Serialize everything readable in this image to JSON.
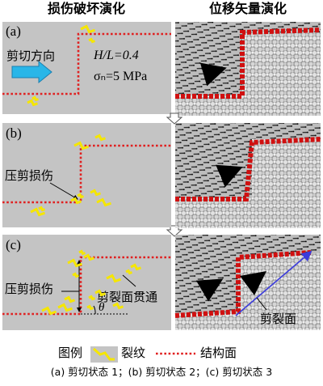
{
  "headers": {
    "left": "损伤破坏演化",
    "right": "位移矢量演化"
  },
  "panels": [
    {
      "label": "(a)",
      "direction": "剪切方向",
      "ratio": "H/L=0.4",
      "stress": "σₙ=5 MPa"
    },
    {
      "label": "(b)",
      "damage": "压剪损伤"
    },
    {
      "label": "(c)",
      "damage": "压剪损伤",
      "through": "剪裂面贯通",
      "angle": "θ",
      "plane": "剪裂面"
    }
  ],
  "legend": {
    "title": "图例",
    "crack": "裂纹",
    "joint": "结构面"
  },
  "caption": "(a) 剪切状态 1；(b) 剪切状态 2；(c) 剪切状态 3"
}
